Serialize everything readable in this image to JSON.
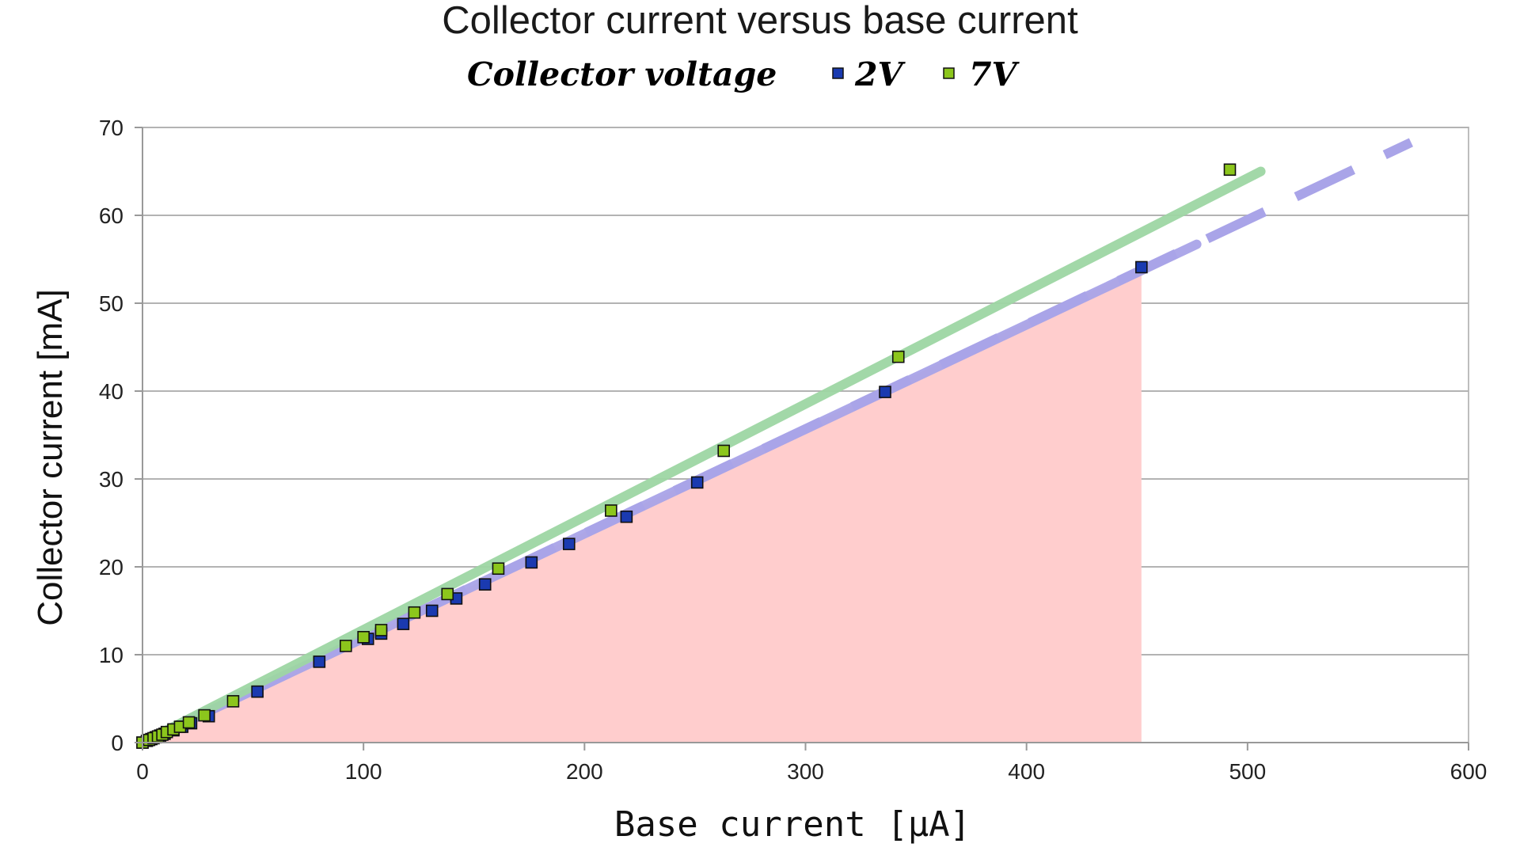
{
  "chart_data": {
    "type": "scatter",
    "title": "Collector current versus base current",
    "legend_title": "Collector voltage",
    "legend_position": "top",
    "xlabel": "Base current [μA]",
    "ylabel": "Collector current [mA]",
    "xlim": [
      0,
      600
    ],
    "ylim": [
      0,
      70
    ],
    "xticks": [
      0,
      100,
      200,
      300,
      400,
      500,
      600
    ],
    "yticks": [
      0,
      10,
      20,
      30,
      40,
      50,
      60,
      70
    ],
    "grid": "horizontal",
    "series": [
      {
        "name": "2V",
        "color": "#1a3ab0",
        "x": [
          0,
          2,
          4,
          6,
          8,
          10,
          14,
          18,
          22,
          30,
          52,
          80,
          102,
          108,
          118,
          131,
          142,
          155,
          176,
          193,
          219,
          251,
          336,
          452
        ],
        "y": [
          0,
          0.2,
          0.4,
          0.6,
          0.8,
          1.0,
          1.4,
          1.8,
          2.2,
          3.0,
          5.8,
          9.2,
          11.8,
          12.4,
          13.5,
          15.0,
          16.4,
          18.0,
          20.5,
          22.6,
          25.7,
          29.6,
          39.9,
          54.1
        ]
      },
      {
        "name": "7V",
        "color": "#8cc61c",
        "x": [
          0,
          3,
          5,
          7,
          9,
          11,
          14,
          17,
          21,
          28,
          41,
          92,
          100,
          108,
          123,
          138,
          161,
          212,
          263,
          342,
          492
        ],
        "y": [
          0,
          0.3,
          0.5,
          0.7,
          0.9,
          1.2,
          1.5,
          1.8,
          2.3,
          3.1,
          4.7,
          11.0,
          12.0,
          12.8,
          14.8,
          16.9,
          19.8,
          26.4,
          33.2,
          43.9,
          65.2
        ]
      }
    ],
    "trendlines": [
      {
        "series": "2V",
        "style": "solid",
        "color": "#a9a4e8",
        "x": [
          0,
          477
        ],
        "y": [
          0,
          56.7
        ]
      },
      {
        "series": "2V",
        "style": "dashed",
        "color": "#a9a4e8",
        "x": [
          0,
          574
        ],
        "y": [
          0,
          68.3
        ]
      },
      {
        "series": "7V",
        "style": "solid",
        "color": "#9ed6a4",
        "x": [
          0,
          506
        ],
        "y": [
          0,
          65.0
        ]
      }
    ],
    "shaded_region": {
      "color": "#ffcdcd",
      "series": "2V",
      "x_max": 452
    }
  }
}
